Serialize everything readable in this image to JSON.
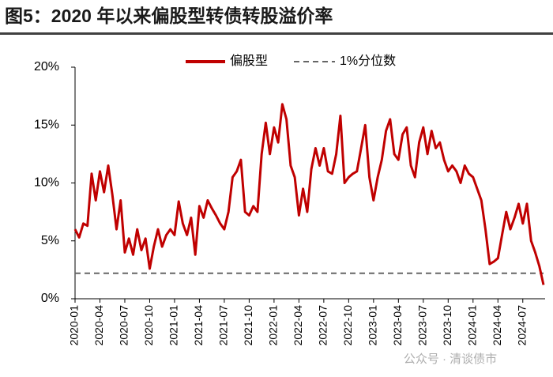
{
  "chart_data": {
    "type": "line",
    "title": "图5：2020 年以来偏股型转债转股溢价率",
    "watermark": "公众号 · 清谈债市",
    "categories": [
      "2020-01",
      null,
      null,
      null,
      null,
      null,
      "2020-04",
      null,
      null,
      null,
      null,
      null,
      "2020-07",
      null,
      null,
      null,
      null,
      null,
      "2020-10",
      null,
      null,
      null,
      null,
      null,
      "2021-01",
      null,
      null,
      null,
      null,
      null,
      "2021-04",
      null,
      null,
      null,
      null,
      null,
      "2021-07",
      null,
      null,
      null,
      null,
      null,
      "2021-10",
      null,
      null,
      null,
      null,
      null,
      "2022-01",
      null,
      null,
      null,
      null,
      null,
      "2022-04",
      null,
      null,
      null,
      null,
      null,
      "2022-07",
      null,
      null,
      null,
      null,
      null,
      "2022-10",
      null,
      null,
      null,
      null,
      null,
      "2023-01",
      null,
      null,
      null,
      null,
      null,
      "2023-04",
      null,
      null,
      null,
      null,
      null,
      "2023-07",
      null,
      null,
      null,
      null,
      null,
      "2023-10",
      null,
      null,
      null,
      null,
      null,
      "2024-01",
      null,
      null,
      null,
      null,
      null,
      "2024-04",
      null,
      null,
      null,
      null,
      null,
      "2024-07",
      null,
      null,
      null,
      null,
      null
    ],
    "series": [
      {
        "name": "偏股型",
        "color": "#c00000",
        "values": [
          6.0,
          5.3,
          6.5,
          6.3,
          10.8,
          8.5,
          11.0,
          9.2,
          11.5,
          9.0,
          6.0,
          8.5,
          4.0,
          5.2,
          3.8,
          6.0,
          4.2,
          5.2,
          2.6,
          4.5,
          6.0,
          4.5,
          5.5,
          6.0,
          5.5,
          8.4,
          6.5,
          5.5,
          7.0,
          3.8,
          8.0,
          7.0,
          8.5,
          7.8,
          7.2,
          6.5,
          6.0,
          7.5,
          10.5,
          11.0,
          12.0,
          7.5,
          7.2,
          8.0,
          7.5,
          12.5,
          15.2,
          12.5,
          14.8,
          13.5,
          16.8,
          15.5,
          11.5,
          10.5,
          7.2,
          9.5,
          7.5,
          11.2,
          13.0,
          11.5,
          13.0,
          11.0,
          10.8,
          12.5,
          15.8,
          10.0,
          10.5,
          10.8,
          11.0,
          13.0,
          15.0,
          10.5,
          8.5,
          10.5,
          12.0,
          14.5,
          15.5,
          12.5,
          12.0,
          14.2,
          14.8,
          11.5,
          10.5,
          13.5,
          14.8,
          12.5,
          14.5,
          13.0,
          13.5,
          12.0,
          11.0,
          11.5,
          11.0,
          10.0,
          11.5,
          10.8,
          10.5,
          9.5,
          8.5,
          6.0,
          3.0,
          3.2,
          3.5,
          5.5,
          7.5,
          6.0,
          7.0,
          8.2,
          6.5,
          8.2,
          5.0,
          4.0,
          2.8,
          1.2
        ]
      }
    ],
    "reference_line": {
      "name": "1%分位数",
      "value": 2.2,
      "color": "#666666"
    },
    "ylim": [
      0,
      20
    ],
    "yticks": [
      {
        "value": 0,
        "label": "0%"
      },
      {
        "value": 5,
        "label": "5%"
      },
      {
        "value": 10,
        "label": "10%"
      },
      {
        "value": 15,
        "label": "15%"
      },
      {
        "value": 20,
        "label": "20%"
      }
    ]
  }
}
